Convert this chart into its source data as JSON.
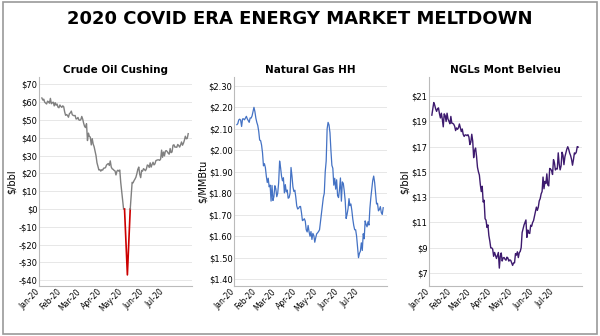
{
  "title": "2020 COVID ERA ENERGY MARKET MELTDOWN",
  "title_fontsize": 13,
  "title_fontweight": "bold",
  "background_color": "#ffffff",
  "subplots": [
    {
      "title": "Crude Oil Cushing",
      "ylabel": "$/bbl",
      "yticks": [
        -40,
        -30,
        -20,
        -10,
        0,
        10,
        20,
        30,
        40,
        50,
        60,
        70
      ],
      "ylim": [
        -43,
        74
      ],
      "ytick_labels": [
        "-$40",
        "-$30",
        "-$20",
        "-$10",
        "$0",
        "$10",
        "$20",
        "$30",
        "$40",
        "$50",
        "$60",
        "$70"
      ],
      "xtick_labels": [
        "Jan-20",
        "Feb-20",
        "Mar-20",
        "Apr-20",
        "May-20",
        "Jun-20",
        "Jul-20"
      ],
      "line_color_main": "#808080",
      "line_color_red": "#cc0000",
      "line_width": 1.0
    },
    {
      "title": "Natural Gas HH",
      "ylabel": "$/MMBtu",
      "yticks": [
        1.4,
        1.5,
        1.6,
        1.7,
        1.8,
        1.9,
        2.0,
        2.1,
        2.2,
        2.3
      ],
      "ylim": [
        1.37,
        2.34
      ],
      "ytick_labels": [
        "$1.40",
        "$1.50",
        "$1.60",
        "$1.70",
        "$1.80",
        "$1.90",
        "$2.00",
        "$2.10",
        "$2.20",
        "$2.30"
      ],
      "xtick_labels": [
        "Jan-20",
        "Feb-20",
        "Mar-20",
        "Apr-20",
        "May-20",
        "Jun-20",
        "Jul-20"
      ],
      "line_color": "#4472c4",
      "line_width": 0.9
    },
    {
      "title": "NGLs Mont Belvieu",
      "ylabel": "$/bbl",
      "yticks": [
        7,
        9,
        11,
        13,
        15,
        17,
        19,
        21
      ],
      "ylim": [
        6.0,
        22.5
      ],
      "ytick_labels": [
        "$7",
        "$9",
        "$11",
        "$13",
        "$15",
        "$17",
        "$19",
        "$21"
      ],
      "xtick_labels": [
        "Jan-20",
        "Feb-20",
        "Mar-20",
        "Apr-20",
        "May-20",
        "Jun-20",
        "Jul-20"
      ],
      "line_color": "#3d1a6e",
      "line_width": 1.0
    }
  ]
}
